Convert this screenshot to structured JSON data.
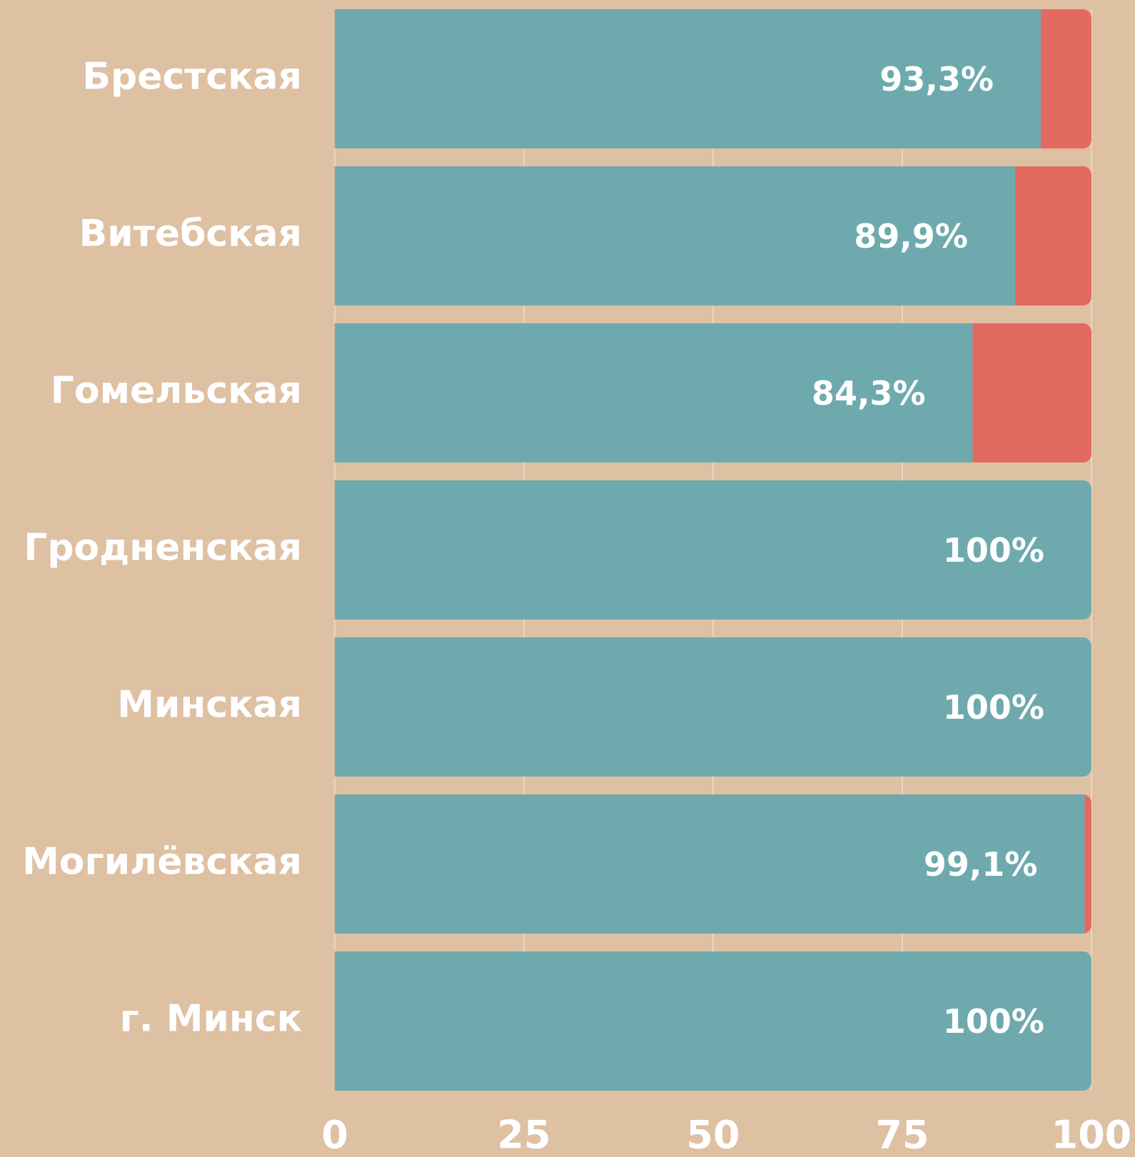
{
  "chart_data": {
    "type": "stacked-barh",
    "categories": [
      "Брестская",
      "Витебская",
      "Гомельская",
      "Гродненская",
      "Минская",
      "Могилёвская",
      "г. Минск"
    ],
    "series": [
      {
        "color": "#6eaaad",
        "values": [
          93.3,
          89.9,
          84.3,
          100,
          100,
          99.1,
          100
        ],
        "value_labels": [
          "93,3%",
          "89,9%",
          "84,3%",
          "100%",
          "100%",
          "99,1%",
          "100%"
        ]
      },
      {
        "color": "#e36a60",
        "values": [
          6.7,
          10.1,
          15.7,
          0,
          0,
          0.9,
          0
        ]
      }
    ],
    "xlim": [
      0,
      100
    ],
    "xticks": [
      0,
      25,
      50,
      75,
      100
    ],
    "grid": true
  }
}
